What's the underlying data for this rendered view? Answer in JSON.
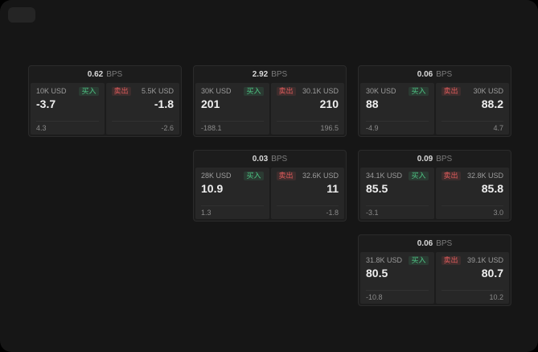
{
  "labels": {
    "bps": "BPS",
    "buy": "买入",
    "sell": "卖出"
  },
  "colors": {
    "buy_green": "#4ec584",
    "sell_red": "#e05c5c",
    "surface": "#161616",
    "card": "#1c1c1c",
    "panel": "#272727"
  },
  "cards": [
    {
      "bps": "0.62",
      "buy": {
        "size": "10K USD",
        "price": "-3.7",
        "sub": "4.3"
      },
      "sell": {
        "size": "5.5K USD",
        "price": "-1.8",
        "sub": "-2.6"
      }
    },
    {
      "bps": "2.92",
      "buy": {
        "size": "30K USD",
        "price": "201",
        "sub": "-188.1"
      },
      "sell": {
        "size": "30.1K USD",
        "price": "210",
        "sub": "196.5"
      }
    },
    {
      "bps": "0.06",
      "buy": {
        "size": "30K USD",
        "price": "88",
        "sub": "-4.9"
      },
      "sell": {
        "size": "30K USD",
        "price": "88.2",
        "sub": "4.7"
      }
    },
    {
      "bps": "0.03",
      "buy": {
        "size": "28K USD",
        "price": "10.9",
        "sub": "1.3"
      },
      "sell": {
        "size": "32.6K USD",
        "price": "11",
        "sub": "-1.8"
      }
    },
    {
      "bps": "0.09",
      "buy": {
        "size": "34.1K USD",
        "price": "85.5",
        "sub": "-3.1"
      },
      "sell": {
        "size": "32.8K USD",
        "price": "85.8",
        "sub": "3.0"
      }
    },
    {
      "bps": "0.06",
      "buy": {
        "size": "31.8K USD",
        "price": "80.5",
        "sub": "-10.8"
      },
      "sell": {
        "size": "39.1K USD",
        "price": "80.7",
        "sub": "10.2"
      }
    }
  ]
}
